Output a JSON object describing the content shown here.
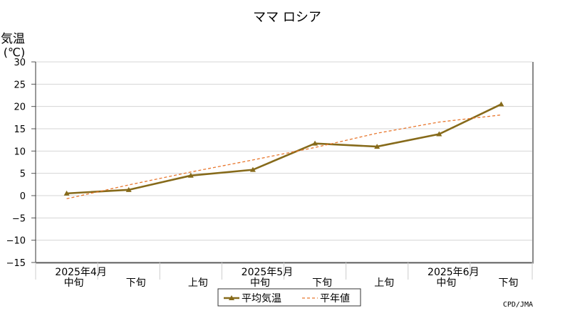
{
  "chart_data": {
    "type": "line",
    "title": "ママ ロシア",
    "ylabel": "気温",
    "yunit": "(℃)",
    "ylim": [
      -15,
      30
    ],
    "yticks": [
      30,
      25,
      20,
      15,
      10,
      5,
      0,
      -5,
      -10,
      -15
    ],
    "ytick_labels": [
      "30",
      "25",
      "20",
      "15",
      "10",
      "5",
      "0",
      "−5",
      "−10",
      "−15"
    ],
    "grid": true,
    "categories": [
      "中旬",
      "下旬",
      "上旬",
      "中旬",
      "下旬",
      "上旬",
      "中旬",
      "下旬"
    ],
    "month_labels": [
      {
        "label": "2025年4月",
        "at": 0
      },
      {
        "label": "2025年5月",
        "at": 3
      },
      {
        "label": "2025年6月",
        "at": 6
      }
    ],
    "series": [
      {
        "name": "平均気温",
        "values": [
          0.5,
          1.3,
          4.5,
          5.8,
          11.7,
          11.0,
          13.8,
          20.5
        ],
        "color": "#866A1A",
        "style": "solid-marker"
      },
      {
        "name": "平年値",
        "values": [
          -0.7,
          2.4,
          5.3,
          8.0,
          10.8,
          14.0,
          16.5,
          18.1
        ],
        "color": "#E8772E",
        "style": "dashed"
      }
    ],
    "legend_position": "bottom",
    "credit": "CPD/JMA"
  }
}
